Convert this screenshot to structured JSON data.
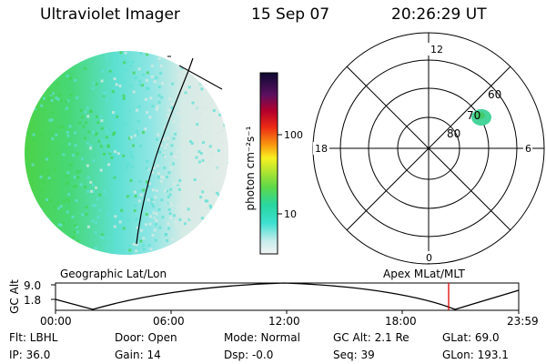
{
  "header": {
    "instrument": "Ultraviolet Imager",
    "date": "15 Sep 07",
    "time": "20:26:29 UT"
  },
  "image_panel": {
    "colors": {
      "green": "#44d454",
      "cyan": "#5fe0d6",
      "pale": "#dbe9e4"
    }
  },
  "colorbar": {
    "label": "photon cm⁻²s⁻¹",
    "ticks": [
      "100",
      "10"
    ],
    "scale": "log"
  },
  "polar_plot": {
    "mlt_labels": {
      "top": "12",
      "right": "6",
      "bottom": "0",
      "left": "18"
    },
    "lat_labels": [
      "60",
      "70",
      "80"
    ],
    "blob_color": "#44d496"
  },
  "altitude_plot": {
    "ylabel": "GC Alt",
    "yticks": [
      "9.0",
      "1.8"
    ],
    "left_label": "Geographic Lat/Lon",
    "right_label": "Apex  MLat/MLT",
    "xticks": [
      "00:00",
      "06:00",
      "12:00",
      "18:00",
      "23:59"
    ],
    "marker_color": "#dd0000"
  },
  "footer": {
    "filter": "Flt: LBHL",
    "ip": "IP: 36.0",
    "door": "Door: Open",
    "gain": "Gain: 14",
    "mode": "Mode: Normal",
    "dsp": "Dsp:   -0.0",
    "gc_alt": "GC Alt: 2.1 Re",
    "seq": "Seq: 39",
    "glat": "GLat:  69.0",
    "glon": "GLon: 193.1"
  }
}
